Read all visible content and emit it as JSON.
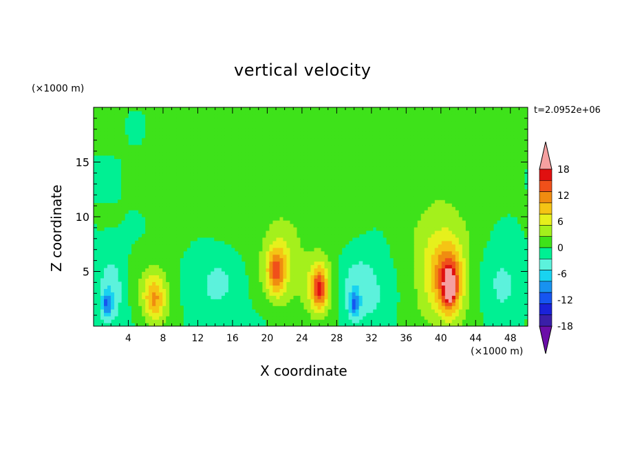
{
  "chart_data": {
    "type": "heatmap",
    "title": "vertical velocity",
    "xlabel": "X coordinate",
    "ylabel": "Z coordinate",
    "x_unit": "(×1000 m)",
    "y_unit": "(×1000 m)",
    "time_label": "t=2.0952e+06",
    "xlim": [
      0,
      50
    ],
    "ylim": [
      0,
      20
    ],
    "x_ticks": [
      4,
      8,
      12,
      16,
      20,
      24,
      28,
      32,
      36,
      40,
      44,
      48
    ],
    "y_ticks": [
      5,
      10,
      15
    ],
    "colorbar_ticks": [
      18,
      12,
      6,
      0,
      -6,
      -12,
      -18
    ],
    "colorbar_levels": [
      -21,
      -18,
      -15,
      -12,
      -9,
      -6,
      -3,
      0,
      3,
      6,
      9,
      12,
      15,
      18,
      21
    ],
    "colorbar_colors": [
      "#6b0fa8",
      "#3a1fa8",
      "#1a22d8",
      "#1655f0",
      "#1892f0",
      "#19d3f0",
      "#5cf2dc",
      "#00f093",
      "#3ee21a",
      "#a4f01c",
      "#e6f01c",
      "#f5c414",
      "#f08c10",
      "#f0501a",
      "#e01010",
      "#f5a0a0"
    ],
    "background_level_color": "#00f093",
    "features": [
      {
        "x": 2.0,
        "z": 3.0,
        "rx": 1.5,
        "rz": 3.5,
        "w": -5
      },
      {
        "x": 1.5,
        "z": 2.0,
        "rx": 0.6,
        "rz": 1.2,
        "w": -9
      },
      {
        "x": 7.0,
        "z": 3.0,
        "rx": 2.0,
        "rz": 3.0,
        "w": 5
      },
      {
        "x": 7.0,
        "z": 2.5,
        "rx": 1.2,
        "rz": 2.0,
        "w": 8
      },
      {
        "x": 14.0,
        "z": 4.0,
        "rx": 3.0,
        "rz": 3.5,
        "w": -4
      },
      {
        "x": 21.5,
        "z": 5.5,
        "rx": 2.2,
        "rz": 3.5,
        "w": 7
      },
      {
        "x": 21.0,
        "z": 5.0,
        "rx": 1.0,
        "rz": 2.0,
        "w": 10
      },
      {
        "x": 26.0,
        "z": 3.5,
        "rx": 1.8,
        "rz": 3.0,
        "w": 8
      },
      {
        "x": 26.0,
        "z": 3.5,
        "rx": 0.8,
        "rz": 1.8,
        "w": 11
      },
      {
        "x": 31.0,
        "z": 3.5,
        "rx": 3.0,
        "rz": 3.5,
        "w": -5
      },
      {
        "x": 30.0,
        "z": 2.0,
        "rx": 0.6,
        "rz": 1.2,
        "w": -10
      },
      {
        "x": 40.0,
        "z": 5.0,
        "rx": 3.0,
        "rz": 5.0,
        "w": 8
      },
      {
        "x": 41.0,
        "z": 4.0,
        "rx": 1.5,
        "rz": 3.0,
        "w": 12
      },
      {
        "x": 41.0,
        "z": 3.5,
        "rx": 0.6,
        "rz": 1.4,
        "w": 14
      },
      {
        "x": 47.0,
        "z": 4.0,
        "rx": 2.5,
        "rz": 3.5,
        "w": -4
      }
    ],
    "plumes": [
      {
        "x": 15.0,
        "z": 12.0,
        "rx": 6.0,
        "rz": 7.0,
        "w": 1.5
      },
      {
        "x": 25.0,
        "z": 12.0,
        "rx": 6.0,
        "rz": 6.5,
        "w": 1.5
      },
      {
        "x": 40.0,
        "z": 11.0,
        "rx": 6.0,
        "rz": 8.0,
        "w": 1.5
      }
    ]
  }
}
